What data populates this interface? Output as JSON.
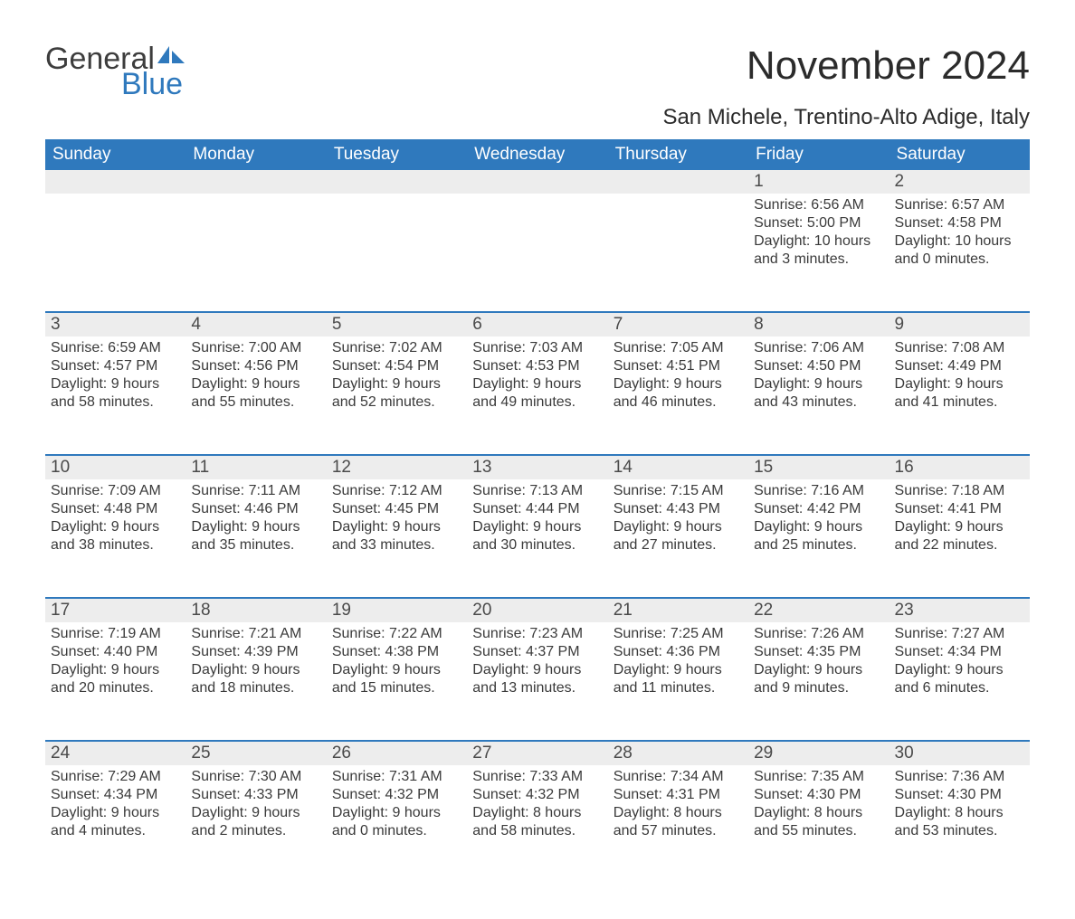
{
  "colors": {
    "header_bg": "#2f79bd",
    "header_text": "#ffffff",
    "daynum_bg": "#ededed",
    "week_border": "#2f79bd",
    "logo_blue": "#2f79bd",
    "logo_gray": "#3d3d3d",
    "body_text": "#3a3a3a"
  },
  "logo": {
    "word1": "General",
    "word2": "Blue"
  },
  "title": "November 2024",
  "location": "San Michele, Trentino-Alto Adige, Italy",
  "weekdays": [
    "Sunday",
    "Monday",
    "Tuesday",
    "Wednesday",
    "Thursday",
    "Friday",
    "Saturday"
  ],
  "weeks": [
    [
      null,
      null,
      null,
      null,
      null,
      {
        "n": "1",
        "sunrise": "6:56 AM",
        "sunset": "5:00 PM",
        "daylight": "10 hours and 3 minutes."
      },
      {
        "n": "2",
        "sunrise": "6:57 AM",
        "sunset": "4:58 PM",
        "daylight": "10 hours and 0 minutes."
      }
    ],
    [
      {
        "n": "3",
        "sunrise": "6:59 AM",
        "sunset": "4:57 PM",
        "daylight": "9 hours and 58 minutes."
      },
      {
        "n": "4",
        "sunrise": "7:00 AM",
        "sunset": "4:56 PM",
        "daylight": "9 hours and 55 minutes."
      },
      {
        "n": "5",
        "sunrise": "7:02 AM",
        "sunset": "4:54 PM",
        "daylight": "9 hours and 52 minutes."
      },
      {
        "n": "6",
        "sunrise": "7:03 AM",
        "sunset": "4:53 PM",
        "daylight": "9 hours and 49 minutes."
      },
      {
        "n": "7",
        "sunrise": "7:05 AM",
        "sunset": "4:51 PM",
        "daylight": "9 hours and 46 minutes."
      },
      {
        "n": "8",
        "sunrise": "7:06 AM",
        "sunset": "4:50 PM",
        "daylight": "9 hours and 43 minutes."
      },
      {
        "n": "9",
        "sunrise": "7:08 AM",
        "sunset": "4:49 PM",
        "daylight": "9 hours and 41 minutes."
      }
    ],
    [
      {
        "n": "10",
        "sunrise": "7:09 AM",
        "sunset": "4:48 PM",
        "daylight": "9 hours and 38 minutes."
      },
      {
        "n": "11",
        "sunrise": "7:11 AM",
        "sunset": "4:46 PM",
        "daylight": "9 hours and 35 minutes."
      },
      {
        "n": "12",
        "sunrise": "7:12 AM",
        "sunset": "4:45 PM",
        "daylight": "9 hours and 33 minutes."
      },
      {
        "n": "13",
        "sunrise": "7:13 AM",
        "sunset": "4:44 PM",
        "daylight": "9 hours and 30 minutes."
      },
      {
        "n": "14",
        "sunrise": "7:15 AM",
        "sunset": "4:43 PM",
        "daylight": "9 hours and 27 minutes."
      },
      {
        "n": "15",
        "sunrise": "7:16 AM",
        "sunset": "4:42 PM",
        "daylight": "9 hours and 25 minutes."
      },
      {
        "n": "16",
        "sunrise": "7:18 AM",
        "sunset": "4:41 PM",
        "daylight": "9 hours and 22 minutes."
      }
    ],
    [
      {
        "n": "17",
        "sunrise": "7:19 AM",
        "sunset": "4:40 PM",
        "daylight": "9 hours and 20 minutes."
      },
      {
        "n": "18",
        "sunrise": "7:21 AM",
        "sunset": "4:39 PM",
        "daylight": "9 hours and 18 minutes."
      },
      {
        "n": "19",
        "sunrise": "7:22 AM",
        "sunset": "4:38 PM",
        "daylight": "9 hours and 15 minutes."
      },
      {
        "n": "20",
        "sunrise": "7:23 AM",
        "sunset": "4:37 PM",
        "daylight": "9 hours and 13 minutes."
      },
      {
        "n": "21",
        "sunrise": "7:25 AM",
        "sunset": "4:36 PM",
        "daylight": "9 hours and 11 minutes."
      },
      {
        "n": "22",
        "sunrise": "7:26 AM",
        "sunset": "4:35 PM",
        "daylight": "9 hours and 9 minutes."
      },
      {
        "n": "23",
        "sunrise": "7:27 AM",
        "sunset": "4:34 PM",
        "daylight": "9 hours and 6 minutes."
      }
    ],
    [
      {
        "n": "24",
        "sunrise": "7:29 AM",
        "sunset": "4:34 PM",
        "daylight": "9 hours and 4 minutes."
      },
      {
        "n": "25",
        "sunrise": "7:30 AM",
        "sunset": "4:33 PM",
        "daylight": "9 hours and 2 minutes."
      },
      {
        "n": "26",
        "sunrise": "7:31 AM",
        "sunset": "4:32 PM",
        "daylight": "9 hours and 0 minutes."
      },
      {
        "n": "27",
        "sunrise": "7:33 AM",
        "sunset": "4:32 PM",
        "daylight": "8 hours and 58 minutes."
      },
      {
        "n": "28",
        "sunrise": "7:34 AM",
        "sunset": "4:31 PM",
        "daylight": "8 hours and 57 minutes."
      },
      {
        "n": "29",
        "sunrise": "7:35 AM",
        "sunset": "4:30 PM",
        "daylight": "8 hours and 55 minutes."
      },
      {
        "n": "30",
        "sunrise": "7:36 AM",
        "sunset": "4:30 PM",
        "daylight": "8 hours and 53 minutes."
      }
    ]
  ],
  "labels": {
    "sunrise": "Sunrise: ",
    "sunset": "Sunset: ",
    "daylight": "Daylight: "
  }
}
